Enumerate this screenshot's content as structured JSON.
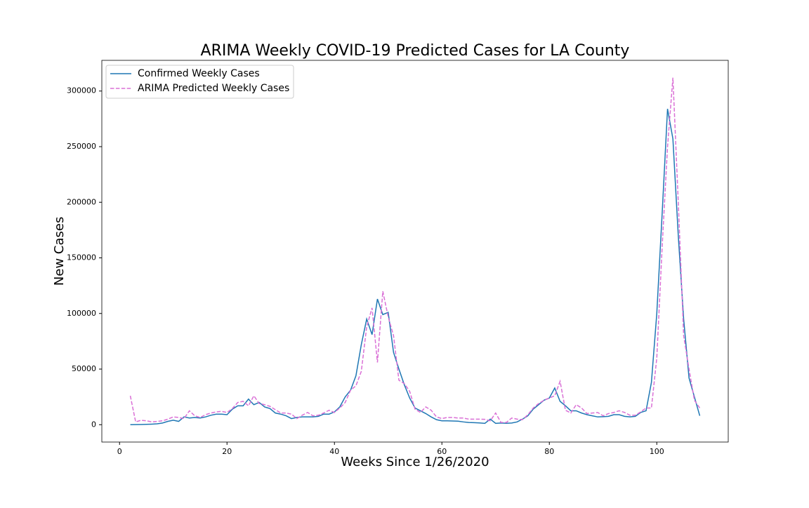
{
  "chart_data": {
    "type": "line",
    "title": "ARIMA Weekly COVID-19 Predicted Cases for LA County",
    "x_label": "Weeks Since 1/26/2020",
    "y_label": "New Cases",
    "x": [
      2,
      3,
      4,
      5,
      6,
      7,
      8,
      9,
      10,
      11,
      12,
      13,
      14,
      15,
      16,
      17,
      18,
      19,
      20,
      21,
      22,
      23,
      24,
      25,
      26,
      27,
      28,
      29,
      30,
      31,
      32,
      33,
      34,
      35,
      36,
      37,
      38,
      39,
      40,
      41,
      42,
      43,
      44,
      45,
      46,
      47,
      48,
      49,
      50,
      51,
      52,
      53,
      54,
      55,
      56,
      57,
      58,
      59,
      60,
      61,
      62,
      63,
      64,
      65,
      66,
      67,
      68,
      69,
      70,
      71,
      72,
      73,
      74,
      75,
      76,
      77,
      78,
      79,
      80,
      81,
      82,
      83,
      84,
      85,
      86,
      87,
      88,
      89,
      90,
      91,
      92,
      93,
      94,
      95,
      96,
      97,
      98,
      99,
      100,
      101,
      102,
      103,
      104,
      105,
      106,
      107,
      108
    ],
    "series": [
      {
        "name": "Confirmed Weekly Cases",
        "color": "#1f77b4",
        "dash": false,
        "values": [
          0,
          100,
          200,
          300,
          500,
          800,
          1500,
          3000,
          4000,
          3000,
          7000,
          6000,
          6500,
          6000,
          7000,
          8500,
          9500,
          9500,
          9000,
          14000,
          17000,
          17000,
          23000,
          18000,
          20000,
          16000,
          14500,
          10500,
          9500,
          8000,
          5500,
          6500,
          7000,
          7000,
          7000,
          7500,
          9500,
          9500,
          11500,
          16000,
          25000,
          31000,
          44000,
          72000,
          95000,
          81000,
          113000,
          99000,
          101000,
          65000,
          50000,
          36000,
          24000,
          15000,
          12500,
          10000,
          7000,
          4500,
          3500,
          3500,
          3300,
          3200,
          2500,
          2000,
          1800,
          1600,
          1200,
          5000,
          1200,
          1500,
          1300,
          1500,
          2500,
          5000,
          8000,
          14000,
          18000,
          22000,
          24000,
          33000,
          21000,
          17000,
          12500,
          12500,
          10500,
          9000,
          8000,
          7000,
          7200,
          7500,
          9000,
          9000,
          7500,
          7000,
          7500,
          11000,
          12500,
          38000,
          100000,
          190000,
          284000,
          257000,
          170000,
          95000,
          42000,
          25000,
          8000
        ]
      },
      {
        "name": "ARIMA Predicted Weekly Cases",
        "color": "#da70d6",
        "dash": true,
        "values": [
          26000,
          2500,
          4000,
          3500,
          2500,
          3000,
          3500,
          5000,
          7000,
          6500,
          5500,
          12500,
          8000,
          6500,
          9000,
          10500,
          11500,
          12000,
          11000,
          14500,
          20000,
          21000,
          17000,
          26000,
          19000,
          18000,
          16500,
          13500,
          10500,
          10500,
          9500,
          5500,
          8500,
          11000,
          8000,
          8500,
          10500,
          13000,
          11000,
          15000,
          20000,
          31000,
          35000,
          48000,
          88000,
          105000,
          56000,
          120000,
          97000,
          80000,
          40000,
          37000,
          30000,
          14000,
          11000,
          16000,
          13000,
          7000,
          5500,
          6500,
          6500,
          6000,
          6000,
          5000,
          5000,
          5000,
          4800,
          3500,
          10500,
          2000,
          2000,
          6000,
          5000,
          4500,
          9000,
          15000,
          19000,
          22000,
          24000,
          26000,
          39000,
          13000,
          10500,
          18000,
          15000,
          10000,
          10500,
          11000,
          8000,
          10000,
          11000,
          12500,
          11000,
          8500,
          8500,
          11500,
          15000,
          15000,
          60000,
          160000,
          250000,
          312000,
          200000,
          80000,
          50000,
          22000,
          15000
        ]
      }
    ],
    "xlim": [
      -3.3,
      113.3
    ],
    "xticks": [
      0,
      20,
      40,
      60,
      80,
      100
    ],
    "ylim": [
      -15600,
      327600
    ],
    "yticks": [
      0,
      50000,
      100000,
      150000,
      200000,
      250000,
      300000
    ],
    "legend": "upper left"
  }
}
